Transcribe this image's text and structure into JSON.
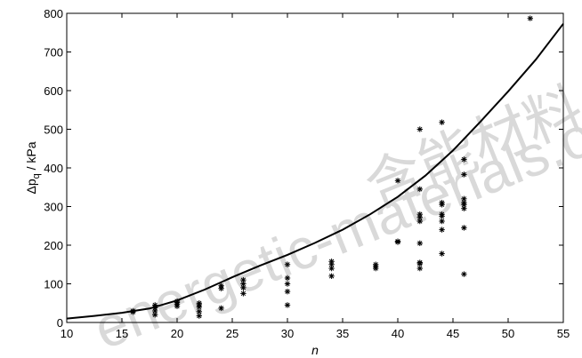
{
  "watermark": {
    "latin": "energetic-materials.org.cn",
    "cjk": "含能材料"
  },
  "chart_data": {
    "type": "scatter",
    "title": "",
    "xlabel": "n",
    "ylabel_main": "Δp",
    "ylabel_sub": "q",
    "ylabel_unit": " / kPa",
    "xlim": [
      10,
      55
    ],
    "ylim": [
      0,
      800
    ],
    "xticks": [
      10,
      15,
      20,
      25,
      30,
      35,
      40,
      45,
      50,
      55
    ],
    "yticks": [
      0,
      100,
      200,
      300,
      400,
      500,
      600,
      700,
      800
    ],
    "grid": false,
    "legend": "none",
    "series": [
      {
        "type": "scatter",
        "marker": "asterisk",
        "points": [
          [
            16,
            27
          ],
          [
            16,
            30
          ],
          [
            18,
            20
          ],
          [
            18,
            30
          ],
          [
            18,
            38
          ],
          [
            18,
            45
          ],
          [
            20,
            42
          ],
          [
            20,
            47
          ],
          [
            20,
            52
          ],
          [
            20,
            55
          ],
          [
            22,
            17
          ],
          [
            22,
            28
          ],
          [
            22,
            40
          ],
          [
            22,
            46
          ],
          [
            22,
            50
          ],
          [
            24,
            37
          ],
          [
            24,
            88
          ],
          [
            24,
            95
          ],
          [
            26,
            75
          ],
          [
            26,
            90
          ],
          [
            26,
            100
          ],
          [
            26,
            110
          ],
          [
            30,
            45
          ],
          [
            30,
            80
          ],
          [
            30,
            100
          ],
          [
            30,
            115
          ],
          [
            30,
            150
          ],
          [
            34,
            120
          ],
          [
            34,
            140
          ],
          [
            34,
            150
          ],
          [
            34,
            158
          ],
          [
            38,
            140
          ],
          [
            38,
            145
          ],
          [
            38,
            150
          ],
          [
            40,
            208
          ],
          [
            40,
            210
          ],
          [
            40,
            367
          ],
          [
            42,
            140
          ],
          [
            42,
            152
          ],
          [
            42,
            155
          ],
          [
            42,
            205
          ],
          [
            42,
            262
          ],
          [
            42,
            272
          ],
          [
            42,
            280
          ],
          [
            42,
            345
          ],
          [
            42,
            500
          ],
          [
            44,
            178
          ],
          [
            44,
            240
          ],
          [
            44,
            262
          ],
          [
            44,
            275
          ],
          [
            44,
            280
          ],
          [
            44,
            305
          ],
          [
            44,
            310
          ],
          [
            44,
            518
          ],
          [
            46,
            125
          ],
          [
            46,
            245
          ],
          [
            46,
            295
          ],
          [
            46,
            305
          ],
          [
            46,
            310
          ],
          [
            46,
            320
          ],
          [
            46,
            383
          ],
          [
            46,
            422
          ],
          [
            52,
            787
          ]
        ]
      },
      {
        "type": "line",
        "points": [
          [
            10,
            10
          ],
          [
            12.5,
            17
          ],
          [
            15,
            25
          ],
          [
            17.5,
            36
          ],
          [
            20,
            57
          ],
          [
            22.5,
            85
          ],
          [
            25,
            117
          ],
          [
            27.5,
            147
          ],
          [
            30,
            175
          ],
          [
            32.5,
            206
          ],
          [
            35,
            240
          ],
          [
            37.5,
            280
          ],
          [
            40,
            325
          ],
          [
            42.5,
            380
          ],
          [
            45,
            445
          ],
          [
            47.5,
            520
          ],
          [
            50,
            598
          ],
          [
            52.5,
            680
          ],
          [
            55,
            773
          ]
        ]
      }
    ]
  }
}
